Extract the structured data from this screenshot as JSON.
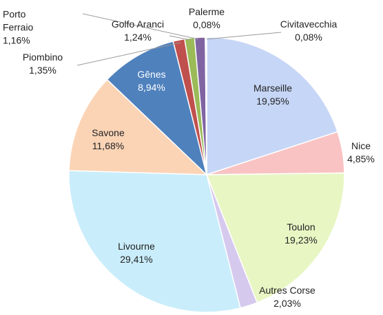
{
  "chart_data": {
    "type": "pie",
    "categories": [
      "Marseille",
      "Nice",
      "Toulon",
      "Autres Corse",
      "Livourne",
      "Savone",
      "Gênes",
      "Piombino",
      "Porto Ferraio",
      "Golfo Aranci",
      "Palerme",
      "Civitavecchia"
    ],
    "values": [
      19.95,
      4.85,
      19.23,
      2.03,
      29.41,
      11.68,
      8.94,
      1.35,
      1.16,
      1.24,
      0.08,
      0.08
    ],
    "value_labels": [
      "19,95%",
      "4,85%",
      "19,23%",
      "2,03%",
      "29,41%",
      "11,68%",
      "8,94%",
      "1,35%",
      "1,16%",
      "1,24%",
      "0,08%",
      "0,08%"
    ],
    "colors": [
      "#c6d6f6",
      "#f9c3c3",
      "#e8f6c4",
      "#d6c9ee",
      "#c9edfb",
      "#fbd4b6",
      "#4f81bd",
      "#c0504d",
      "#9bbb59",
      "#8064a2",
      "#4bacc6",
      "#f79646"
    ]
  }
}
